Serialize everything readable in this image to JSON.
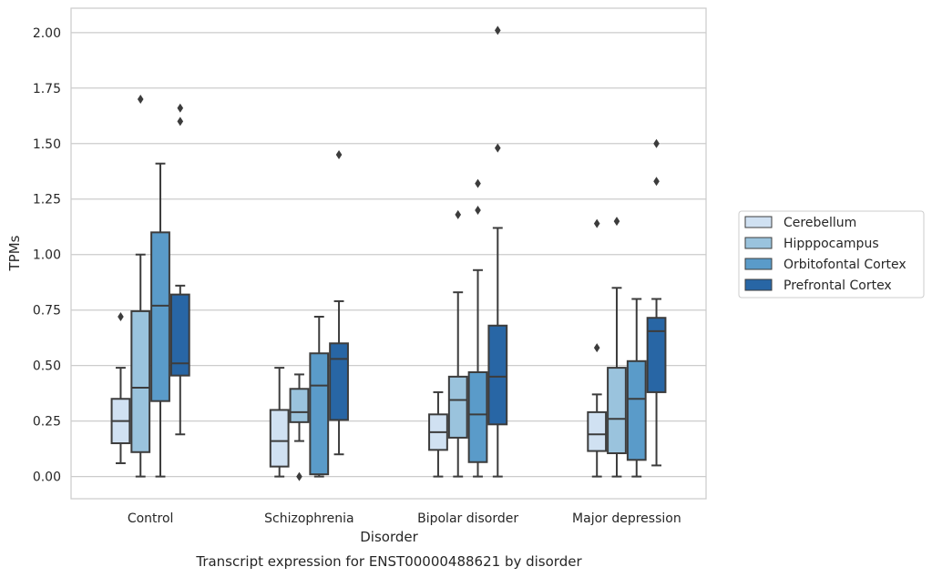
{
  "chart_data": {
    "type": "boxplot",
    "title": "Transcript expression for ENST00000488621 by disorder",
    "xlabel": "Disorder",
    "ylabel": "TPMs",
    "ylim": [
      -0.1,
      2.11
    ],
    "yticks": [
      0.0,
      0.25,
      0.5,
      0.75,
      1.0,
      1.25,
      1.5,
      1.75,
      2.0
    ],
    "ytick_labels": [
      "0.00",
      "0.25",
      "0.50",
      "0.75",
      "1.00",
      "1.25",
      "1.50",
      "1.75",
      "2.00"
    ],
    "grid": "horizontal",
    "legend_position": "right",
    "categories": [
      "Control",
      "Schizophrenia",
      "Bipolar disorder",
      "Major depression"
    ],
    "series": [
      {
        "name": "Cerebellum",
        "color": "#d0e1f2",
        "boxes": [
          {
            "whislo": 0.06,
            "q1": 0.15,
            "med": 0.25,
            "q3": 0.35,
            "whishi": 0.49,
            "fliers": [
              0.72
            ]
          },
          {
            "whislo": 0.0,
            "q1": 0.045,
            "med": 0.16,
            "q3": 0.3,
            "whishi": 0.49,
            "fliers": []
          },
          {
            "whislo": 0.0,
            "q1": 0.12,
            "med": 0.2,
            "q3": 0.28,
            "whishi": 0.38,
            "fliers": []
          },
          {
            "whislo": 0.0,
            "q1": 0.115,
            "med": 0.19,
            "q3": 0.29,
            "whishi": 0.37,
            "fliers": [
              0.58,
              1.14
            ]
          }
        ]
      },
      {
        "name": "Hipppocampus",
        "color": "#9ac3dd",
        "boxes": [
          {
            "whislo": 0.0,
            "q1": 0.11,
            "med": 0.4,
            "q3": 0.745,
            "whishi": 1.0,
            "fliers": [
              1.7
            ]
          },
          {
            "whislo": 0.16,
            "q1": 0.245,
            "med": 0.29,
            "q3": 0.395,
            "whishi": 0.46,
            "fliers": [
              0.0
            ]
          },
          {
            "whislo": 0.0,
            "q1": 0.175,
            "med": 0.345,
            "q3": 0.45,
            "whishi": 0.83,
            "fliers": [
              1.18
            ]
          },
          {
            "whislo": 0.0,
            "q1": 0.105,
            "med": 0.26,
            "q3": 0.49,
            "whishi": 0.85,
            "fliers": [
              1.15
            ]
          }
        ]
      },
      {
        "name": "Orbitofontal Cortex",
        "color": "#5a9bc9",
        "boxes": [
          {
            "whislo": 0.0,
            "q1": 0.34,
            "med": 0.77,
            "q3": 1.1,
            "whishi": 1.41,
            "fliers": []
          },
          {
            "whislo": 0.0,
            "q1": 0.01,
            "med": 0.41,
            "q3": 0.555,
            "whishi": 0.72,
            "fliers": []
          },
          {
            "whislo": 0.0,
            "q1": 0.065,
            "med": 0.28,
            "q3": 0.47,
            "whishi": 0.93,
            "fliers": [
              1.2,
              1.32
            ]
          },
          {
            "whislo": 0.0,
            "q1": 0.075,
            "med": 0.35,
            "q3": 0.52,
            "whishi": 0.8,
            "fliers": []
          }
        ]
      },
      {
        "name": "Prefrontal Cortex",
        "color": "#2866a5",
        "boxes": [
          {
            "whislo": 0.19,
            "q1": 0.455,
            "med": 0.51,
            "q3": 0.82,
            "whishi": 0.86,
            "fliers": [
              1.6,
              1.66
            ]
          },
          {
            "whislo": 0.1,
            "q1": 0.255,
            "med": 0.53,
            "q3": 0.6,
            "whishi": 0.79,
            "fliers": [
              1.45
            ]
          },
          {
            "whislo": 0.0,
            "q1": 0.235,
            "med": 0.45,
            "q3": 0.68,
            "whishi": 1.12,
            "fliers": [
              1.48,
              2.01
            ]
          },
          {
            "whislo": 0.05,
            "q1": 0.38,
            "med": 0.655,
            "q3": 0.715,
            "whishi": 0.8,
            "fliers": [
              1.33,
              1.5
            ]
          }
        ]
      }
    ]
  }
}
